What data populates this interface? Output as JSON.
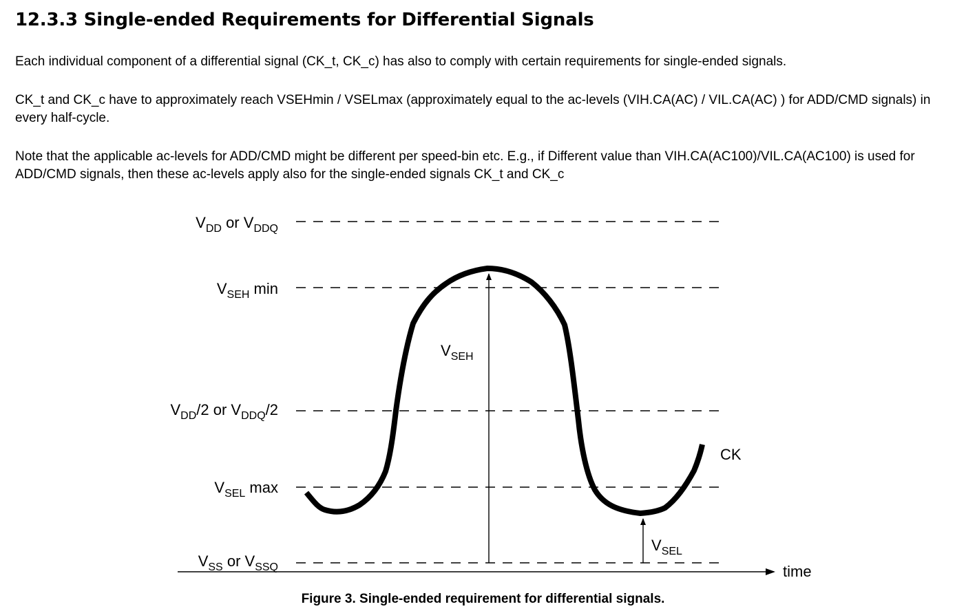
{
  "section": {
    "title": "12.3.3 Single-ended Requirements for Differential Signals"
  },
  "paragraphs": [
    "Each individual component of a differential signal (CK_t, CK_c) has also to comply with certain requirements for single-ended signals.",
    "CK_t and CK_c have to approximately reach VSEHmin / VSELmax (approximately equal to the ac-levels (VIH.CA(AC) / VIL.CA(AC) ) for ADD/CMD signals) in every half-cycle.",
    "Note that the applicable ac-levels for ADD/CMD  might be different per speed-bin etc. E.g., if Different value than VIH.CA(AC100)/VIL.CA(AC100) is used for ADD/CMD signals, then these ac-levels apply also for the single-ended signals CK_t and CK_c"
  ],
  "figure": {
    "level_labels": {
      "vdd": {
        "v1": "V",
        "s1": "DD",
        "mid": " or ",
        "v2": "V",
        "s2": "DDQ"
      },
      "vseh_min": {
        "v": "V",
        "s": "SEH",
        "tail": " min"
      },
      "vdd_half": {
        "v1": "V",
        "s1": "DD",
        "mid": "/2 or ",
        "v2": "V",
        "s2": "DDQ",
        "tail": "/2"
      },
      "vsel_max": {
        "v": "V",
        "s": "SEL",
        "tail": " max"
      },
      "vss": {
        "v1": "V",
        "s1": "SS",
        "mid": " or ",
        "v2": "V",
        "s2": "SSQ"
      }
    },
    "annotations": {
      "vseh": {
        "v": "V",
        "s": "SEH"
      },
      "vsel": {
        "v": "V",
        "s": "SEL"
      },
      "signal": "CK",
      "time_axis": "time"
    },
    "caption": "Figure 3. Single-ended requirement for differential signals."
  }
}
